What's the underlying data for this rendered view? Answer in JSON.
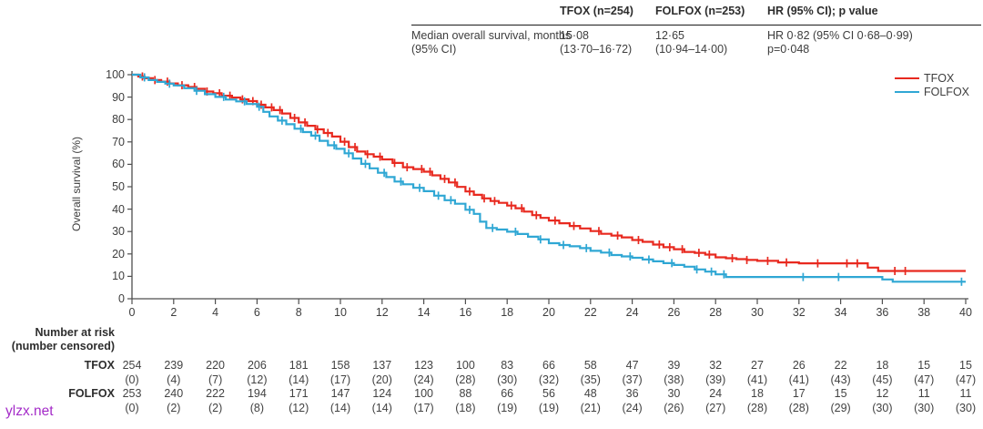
{
  "watermark": "ylzx.net",
  "summary_table": {
    "col_headers": [
      "TFOX (n=254)",
      "FOLFOX (n=253)",
      "HR (95% CI); p value"
    ],
    "row_label": [
      "Median overall survival,  months",
      "(95% CI)"
    ],
    "cells": [
      [
        "15·08",
        "(13·70–16·72)"
      ],
      [
        "12·65",
        "(10·94–14·00)"
      ],
      [
        "HR 0·82 (95% CI 0·68–0·99)",
        "p=0·048"
      ]
    ]
  },
  "risk_table": {
    "header": [
      "Number at risk",
      "(number censored)"
    ],
    "rows": [
      {
        "label": "TFOX",
        "at_risk": [
          254,
          239,
          220,
          206,
          181,
          158,
          137,
          123,
          100,
          83,
          66,
          58,
          47,
          39,
          32,
          27,
          26,
          22,
          18,
          15,
          15
        ],
        "censored": [
          0,
          4,
          7,
          12,
          14,
          17,
          20,
          24,
          28,
          30,
          32,
          35,
          37,
          38,
          39,
          41,
          41,
          43,
          45,
          47,
          47
        ]
      },
      {
        "label": "FOLFOX",
        "at_risk": [
          253,
          240,
          222,
          194,
          171,
          147,
          124,
          100,
          88,
          66,
          56,
          48,
          36,
          30,
          24,
          18,
          17,
          15,
          12,
          11,
          11
        ],
        "censored": [
          0,
          2,
          2,
          8,
          12,
          14,
          14,
          17,
          18,
          19,
          19,
          21,
          24,
          26,
          27,
          28,
          28,
          29,
          30,
          30,
          30
        ]
      }
    ]
  },
  "chart_data": {
    "type": "line",
    "subtype": "kaplan-meier-step",
    "title": "",
    "xlabel": "",
    "ylabel": "Overall survival (%)",
    "xlim": [
      0,
      40
    ],
    "ylim": [
      0,
      100
    ],
    "xticks": [
      0,
      2,
      4,
      6,
      8,
      10,
      12,
      14,
      16,
      18,
      20,
      22,
      24,
      26,
      28,
      30,
      32,
      34,
      36,
      38,
      40
    ],
    "yticks": [
      0,
      10,
      20,
      30,
      40,
      50,
      60,
      70,
      80,
      90,
      100
    ],
    "grid": false,
    "legend_position": "top-right",
    "axis_color": "#4f4f4f",
    "series": [
      {
        "name": "TFOX",
        "color": "#e8291f",
        "median_months": 15.08,
        "points": [
          [
            0,
            100
          ],
          [
            0.3,
            99.2
          ],
          [
            0.6,
            98.4
          ],
          [
            1,
            97.6
          ],
          [
            1.4,
            96.9
          ],
          [
            1.8,
            96.1
          ],
          [
            2.2,
            95.3
          ],
          [
            2.7,
            94.5
          ],
          [
            3.1,
            93.7
          ],
          [
            3.5,
            92.5
          ],
          [
            3.9,
            91.7
          ],
          [
            4.3,
            90.6
          ],
          [
            4.8,
            89.8
          ],
          [
            5.2,
            89
          ],
          [
            5.6,
            88.2
          ],
          [
            6,
            86.6
          ],
          [
            6.4,
            85.4
          ],
          [
            6.8,
            84.2
          ],
          [
            7.2,
            82.7
          ],
          [
            7.6,
            80.7
          ],
          [
            8,
            78.7
          ],
          [
            8.4,
            77.2
          ],
          [
            8.8,
            75.6
          ],
          [
            9.2,
            74
          ],
          [
            9.6,
            72.4
          ],
          [
            10,
            70.1
          ],
          [
            10.4,
            67.7
          ],
          [
            10.8,
            65.7
          ],
          [
            11.2,
            64.5
          ],
          [
            11.6,
            63.4
          ],
          [
            12,
            62.2
          ],
          [
            12.5,
            60.6
          ],
          [
            13,
            58.7
          ],
          [
            13.5,
            57.9
          ],
          [
            14,
            56.7
          ],
          [
            14.4,
            55.1
          ],
          [
            14.8,
            53.5
          ],
          [
            15.2,
            51.9
          ],
          [
            15.6,
            49.9
          ],
          [
            16,
            47.9
          ],
          [
            16.4,
            46.4
          ],
          [
            16.8,
            44.8
          ],
          [
            17.2,
            43.6
          ],
          [
            17.6,
            42.8
          ],
          [
            18,
            41.6
          ],
          [
            18.4,
            40.4
          ],
          [
            18.8,
            38.9
          ],
          [
            19.2,
            37.3
          ],
          [
            19.6,
            36.1
          ],
          [
            20,
            34.9
          ],
          [
            20.5,
            33.7
          ],
          [
            21,
            32.5
          ],
          [
            21.5,
            31.4
          ],
          [
            22,
            30.2
          ],
          [
            22.5,
            29
          ],
          [
            23,
            28.2
          ],
          [
            23.5,
            27.4
          ],
          [
            24,
            26.2
          ],
          [
            24.5,
            25.4
          ],
          [
            25,
            24.2
          ],
          [
            25.5,
            23
          ],
          [
            26,
            22.1
          ],
          [
            26.5,
            20.9
          ],
          [
            27,
            20.5
          ],
          [
            27.5,
            19.7
          ],
          [
            28,
            18.5
          ],
          [
            28.5,
            18.1
          ],
          [
            29,
            17.7
          ],
          [
            29.5,
            17.3
          ],
          [
            30,
            16.9
          ],
          [
            31,
            16.2
          ],
          [
            32,
            15.8
          ],
          [
            35.3,
            13.9
          ],
          [
            35.8,
            12.4
          ],
          [
            40,
            12.4
          ]
        ],
        "censor_times": [
          0.5,
          1.1,
          1.7,
          2.4,
          3,
          3.6,
          4.2,
          4.7,
          5.3,
          5.8,
          6.2,
          6.7,
          7.1,
          7.8,
          8.3,
          8.9,
          9.4,
          10.2,
          10.7,
          11.3,
          11.9,
          12.6,
          13.2,
          13.9,
          14.3,
          15,
          15.5,
          16.2,
          16.9,
          17.4,
          18.2,
          18.7,
          19.4,
          20.3,
          21.2,
          22.4,
          23.3,
          24.3,
          25.3,
          25.8,
          26.4,
          27.2,
          27.7,
          28.8,
          29.5,
          30.5,
          31.4,
          32.9,
          34.3,
          34.8,
          36.6,
          37.1
        ]
      },
      {
        "name": "FOLFOX",
        "color": "#2fa7d4",
        "median_months": 12.65,
        "points": [
          [
            0,
            100
          ],
          [
            0.4,
            98.8
          ],
          [
            0.8,
            97.6
          ],
          [
            1.2,
            96.8
          ],
          [
            1.6,
            96
          ],
          [
            2,
            95.2
          ],
          [
            2.5,
            94
          ],
          [
            3,
            92.8
          ],
          [
            3.5,
            91.3
          ],
          [
            4,
            90.1
          ],
          [
            4.5,
            88.9
          ],
          [
            5,
            88.1
          ],
          [
            5.5,
            86.9
          ],
          [
            6,
            85.7
          ],
          [
            6.3,
            83.4
          ],
          [
            6.6,
            81.4
          ],
          [
            7,
            79.5
          ],
          [
            7.4,
            77.9
          ],
          [
            7.8,
            75.9
          ],
          [
            8.2,
            74.4
          ],
          [
            8.6,
            72.8
          ],
          [
            9,
            70.5
          ],
          [
            9.4,
            68.5
          ],
          [
            9.8,
            66.9
          ],
          [
            10.2,
            64.9
          ],
          [
            10.6,
            62.6
          ],
          [
            11,
            60.2
          ],
          [
            11.4,
            58.2
          ],
          [
            11.8,
            56.2
          ],
          [
            12.2,
            54.3
          ],
          [
            12.6,
            52.3
          ],
          [
            13,
            51.1
          ],
          [
            13.5,
            49.5
          ],
          [
            14,
            48
          ],
          [
            14.5,
            46
          ],
          [
            15,
            44
          ],
          [
            15.5,
            42.4
          ],
          [
            16,
            39.7
          ],
          [
            16.4,
            37.9
          ],
          [
            16.7,
            34.4
          ],
          [
            17,
            31.6
          ],
          [
            17.5,
            30.9
          ],
          [
            18,
            29.9
          ],
          [
            18.5,
            28.9
          ],
          [
            19,
            27.7
          ],
          [
            19.5,
            26.5
          ],
          [
            20,
            24.8
          ],
          [
            20.5,
            24
          ],
          [
            21,
            23.4
          ],
          [
            21.5,
            22.6
          ],
          [
            22,
            21.4
          ],
          [
            22.5,
            20.6
          ],
          [
            23,
            19.5
          ],
          [
            23.5,
            18.9
          ],
          [
            24,
            18.3
          ],
          [
            24.5,
            17.5
          ],
          [
            25,
            16.7
          ],
          [
            25.5,
            15.9
          ],
          [
            26,
            15.1
          ],
          [
            26.5,
            14.3
          ],
          [
            27,
            13.1
          ],
          [
            27.5,
            12.1
          ],
          [
            28,
            10.9
          ],
          [
            28.5,
            9.7
          ],
          [
            36,
            8.6
          ],
          [
            36.5,
            7.6
          ],
          [
            40,
            7.6
          ]
        ],
        "censor_times": [
          0.6,
          1.8,
          3.1,
          4.4,
          5.4,
          6.1,
          7.2,
          8.1,
          8.8,
          9.7,
          10.4,
          11.2,
          12.1,
          12.9,
          13.8,
          14.7,
          15.3,
          16.2,
          17.3,
          18.4,
          19.6,
          20.7,
          21.8,
          22.9,
          23.9,
          24.8,
          25.9,
          27.1,
          27.8,
          28.4,
          32.2,
          33.9,
          39.8
        ]
      }
    ]
  }
}
